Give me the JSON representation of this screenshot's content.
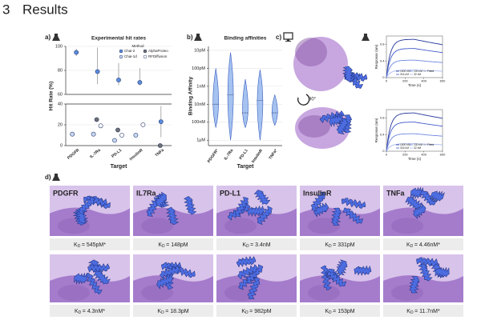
{
  "section": {
    "number": "3",
    "title": "Results"
  },
  "panel_labels": {
    "a": "a)",
    "b": "b)",
    "c": "c)",
    "d": "d)"
  },
  "chart_data": [
    {
      "type": "dot",
      "title": "Experimental hit rates",
      "x_label": "Target",
      "y_label": "Hit Rate (%)",
      "legend_title": "Method",
      "categories": [
        "PDGFR",
        "IL-7Ra",
        "PD-L1",
        "InsulinR",
        "TNFa"
      ],
      "series": [
        {
          "name": "Chai-2",
          "color": "#5b8de0",
          "values": [
            95,
            79,
            72,
            70,
            23
          ],
          "errors": [
            3,
            20,
            14,
            12,
            15
          ]
        },
        {
          "name": "Chai-1d",
          "color": "#c9d8f3",
          "values": [
            11,
            11,
            5,
            10,
            null
          ]
        },
        {
          "name": "AlphaProteo",
          "color": "#6f6f6f",
          "values": [
            null,
            25,
            15,
            null,
            0
          ]
        },
        {
          "name": "RFDiffusion",
          "color": "#ffffff",
          "values": [
            null,
            19,
            10,
            20,
            null
          ]
        }
      ],
      "ylim": [
        0,
        100
      ],
      "ybreak": [
        40,
        60
      ],
      "yticks": [
        0,
        20,
        40,
        60,
        80,
        100
      ],
      "grid": true
    },
    {
      "type": "violin",
      "title": "Binding affinities",
      "x_label": "Target",
      "y_label": "Binding Affinity",
      "categories": [
        "PDGFR*",
        "IL-7Ra",
        "PD-L1",
        "InsulinR",
        "TNFa*"
      ],
      "color": "#8fb3ec",
      "min": [
        0.1,
        0.013,
        0.4,
        0.12,
        3
      ],
      "median": [
        10,
        3,
        30,
        6,
        30
      ],
      "max": [
        200,
        1000,
        200,
        1000,
        150
      ],
      "y_scale": "log",
      "y_inverted": true,
      "ylim": [
        0.006,
        2000
      ],
      "yticks": [
        {
          "value": 0.01,
          "label": "10pM"
        },
        {
          "value": 0.1,
          "label": "100pM"
        },
        {
          "value": 1,
          "label": "1nM"
        },
        {
          "value": 10,
          "label": "10nM"
        },
        {
          "value": 100,
          "label": "100nM"
        },
        {
          "value": 1000,
          "label": "1µM"
        }
      ],
      "grid": true
    },
    {
      "type": "line",
      "x_label": "Time (s)",
      "y_label": "Response (nm)",
      "xlim": [
        0,
        600
      ],
      "xticks": [
        0,
        200,
        400,
        600
      ],
      "ylim": [
        0,
        1
      ],
      "yticks": [
        0,
        0.4,
        0.8
      ],
      "series": [
        {
          "name": "1000 nM",
          "color": "#23349a"
        },
        {
          "name": "100 nM",
          "color": "#6f86e0"
        },
        {
          "name": "Fitted",
          "color": "#9a9a9a"
        },
        {
          "name": "316 nM",
          "color": "#3f58c8"
        },
        {
          "name": "32 nM",
          "color": "#a8b8ef"
        }
      ]
    },
    {
      "type": "line",
      "x_label": "Time (s)",
      "y_label": "Response (nm)",
      "xlim": [
        0,
        600
      ],
      "xticks": [
        0,
        200,
        400,
        600
      ],
      "ylim": [
        0,
        1
      ],
      "yticks": [
        0,
        0.4,
        0.8
      ],
      "series": [
        {
          "name": "1000 nM",
          "color": "#23349a"
        },
        {
          "name": "100 nM",
          "color": "#6f86e0"
        },
        {
          "name": "Fitted",
          "color": "#9a9a9a"
        },
        {
          "name": "316 nM",
          "color": "#3f58c8"
        },
        {
          "name": "32 nM",
          "color": "#a8b8ef"
        }
      ]
    }
  ],
  "panel_c": {
    "rotation_label": "90°"
  },
  "panel_d": {
    "targets": [
      "PDGFR",
      "IL7Ra",
      "PD-L1",
      "InsulinR",
      "TNFa"
    ],
    "kd_symbol": "K",
    "kd_subscript": "D",
    "kd_values": [
      [
        "= 545pM*",
        "= 148pM",
        "= 3.4nM",
        "= 331pM",
        "= 4.46nM*"
      ],
      [
        "= 4.3nM*",
        "= 18.3pM",
        "= 982pM",
        "= 153pM",
        "= 11.7nM*"
      ]
    ]
  }
}
